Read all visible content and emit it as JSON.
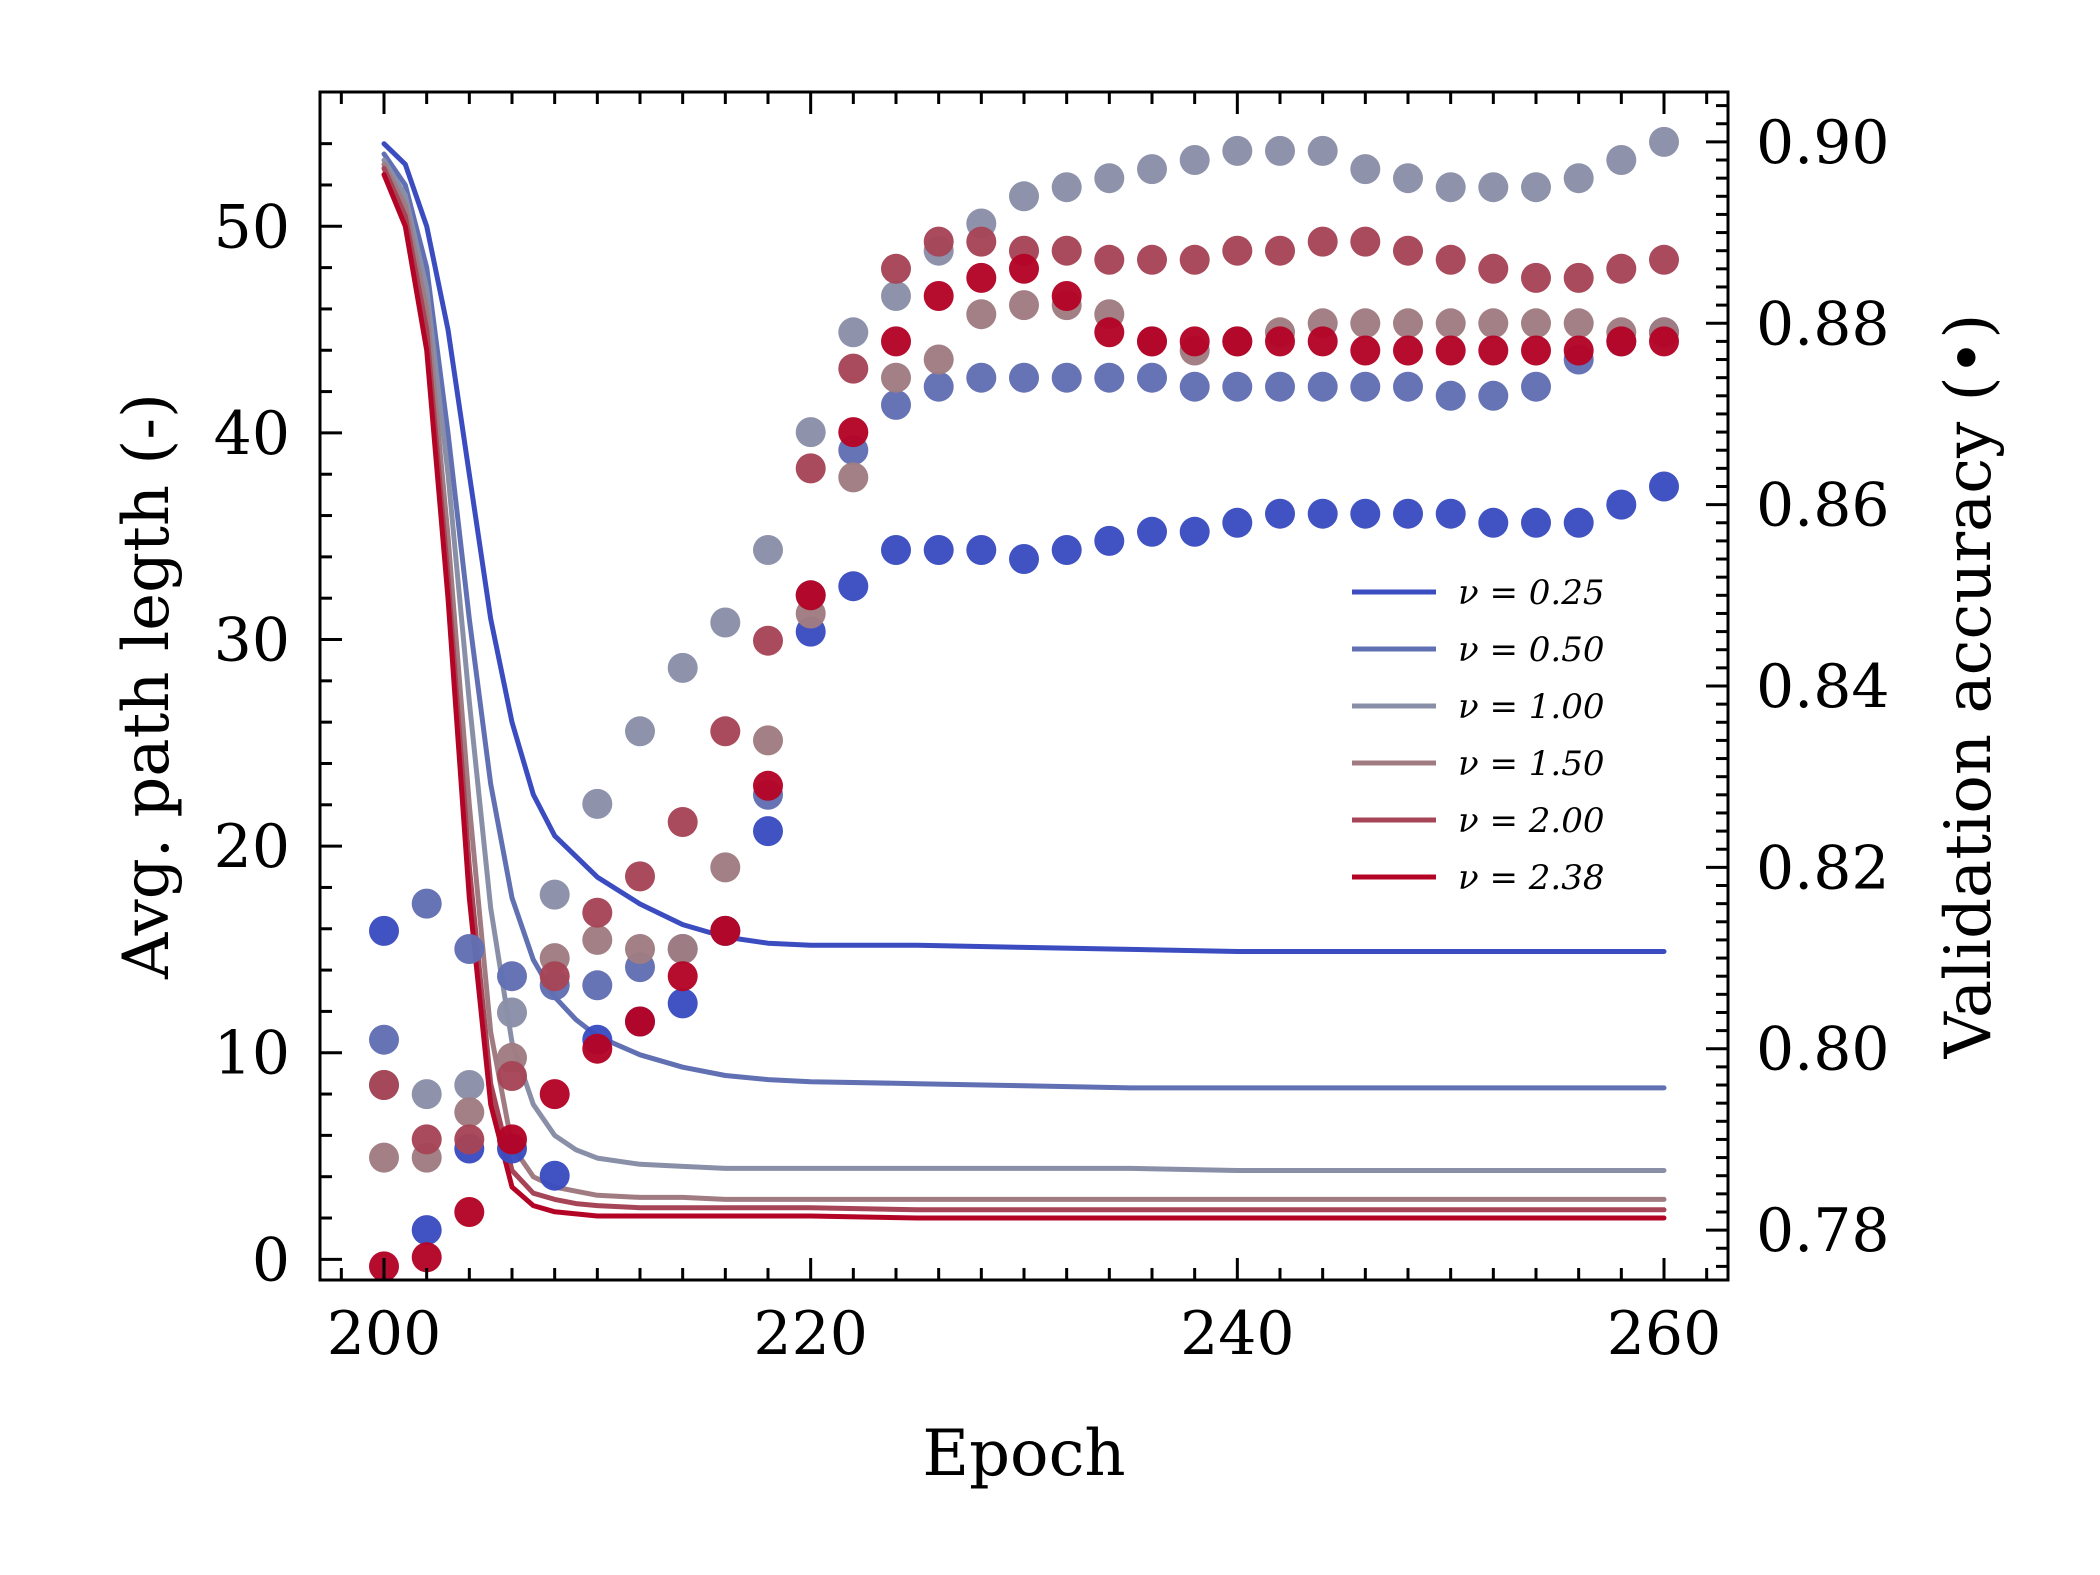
{
  "chart_data": {
    "type": "line+scatter",
    "xlabel": "Epoch",
    "ylabel_left": "Avg. path legth (-)",
    "ylabel_right": "Validation accuracy (•)",
    "xlim": [
      197,
      263
    ],
    "ylim_left": [
      -1,
      56.5
    ],
    "ylim_right": [
      0.7745,
      0.9055
    ],
    "x_ticks": [
      "200",
      "220",
      "240",
      "260"
    ],
    "y_left_ticks": [
      "0",
      "10",
      "20",
      "30",
      "40",
      "50"
    ],
    "y_right_ticks": [
      "0.78",
      "0.80",
      "0.82",
      "0.84",
      "0.86",
      "0.88",
      "0.90"
    ],
    "legend": {
      "position": "center-right"
    },
    "epochs": [
      200,
      202,
      204,
      206,
      208,
      210,
      212,
      214,
      216,
      218,
      220,
      222,
      224,
      226,
      228,
      230,
      232,
      234,
      236,
      238,
      240,
      242,
      244,
      246,
      248,
      250,
      252,
      254,
      256,
      258,
      260
    ],
    "series": [
      {
        "name": "ν = 0.25",
        "color": "#3b4cc0",
        "path_length": {
          "x": [
            200,
            201,
            202,
            203,
            204,
            205,
            206,
            207,
            208,
            210,
            212,
            214,
            216,
            218,
            220,
            222,
            225,
            230,
            235,
            240,
            245,
            250,
            255,
            260
          ],
          "y": [
            54,
            53,
            50,
            45,
            38,
            31,
            26,
            22.5,
            20.5,
            18.5,
            17.2,
            16.2,
            15.6,
            15.3,
            15.2,
            15.2,
            15.2,
            15.1,
            15.0,
            14.9,
            14.9,
            14.9,
            14.9,
            14.9
          ]
        },
        "accuracy": [
          0.813,
          0.78,
          0.789,
          0.789,
          0.786,
          0.801,
          0.803,
          0.805,
          0.813,
          0.824,
          0.846,
          0.851,
          0.855,
          0.855,
          0.855,
          0.854,
          0.855,
          0.856,
          0.857,
          0.857,
          0.858,
          0.859,
          0.859,
          0.859,
          0.859,
          0.859,
          0.858,
          0.858,
          0.858,
          0.86,
          0.862
        ]
      },
      {
        "name": "ν = 0.50",
        "color": "#6170b3",
        "path_length": {
          "x": [
            200,
            201,
            202,
            203,
            204,
            205,
            206,
            207,
            208,
            209,
            210,
            212,
            214,
            216,
            218,
            220,
            225,
            230,
            235,
            240,
            245,
            250,
            255,
            260
          ],
          "y": [
            53.5,
            52,
            48,
            40,
            31,
            23,
            17.5,
            14.5,
            12.7,
            11.6,
            10.8,
            9.9,
            9.3,
            8.9,
            8.7,
            8.6,
            8.5,
            8.4,
            8.3,
            8.3,
            8.3,
            8.3,
            8.3,
            8.3
          ]
        },
        "accuracy": [
          0.801,
          0.816,
          0.811,
          0.808,
          0.807,
          0.807,
          0.809,
          0.811,
          0.813,
          0.828,
          0.85,
          0.866,
          0.871,
          0.873,
          0.874,
          0.874,
          0.874,
          0.874,
          0.874,
          0.873,
          0.873,
          0.873,
          0.873,
          0.873,
          0.873,
          0.872,
          0.872,
          0.873,
          0.876,
          0.878,
          0.879
        ]
      },
      {
        "name": "ν = 1.00",
        "color": "#8a8fa8",
        "path_length": {
          "x": [
            200,
            201,
            202,
            203,
            204,
            205,
            206,
            207,
            208,
            209,
            210,
            212,
            214,
            216,
            218,
            220,
            225,
            230,
            235,
            240,
            245,
            250,
            255,
            260
          ],
          "y": [
            53.2,
            51.5,
            47,
            38,
            27,
            17,
            10.5,
            7.5,
            6.0,
            5.3,
            4.9,
            4.6,
            4.5,
            4.4,
            4.4,
            4.4,
            4.4,
            4.4,
            4.4,
            4.3,
            4.3,
            4.3,
            4.3,
            4.3
          ]
        },
        "accuracy": [
          0.796,
          0.795,
          0.796,
          0.804,
          0.817,
          0.827,
          0.835,
          0.842,
          0.847,
          0.855,
          0.868,
          0.879,
          0.883,
          0.888,
          0.891,
          0.894,
          0.895,
          0.896,
          0.897,
          0.898,
          0.899,
          0.899,
          0.899,
          0.897,
          0.896,
          0.895,
          0.895,
          0.895,
          0.896,
          0.898,
          0.9
        ]
      },
      {
        "name": "ν = 1.50",
        "color": "#a07c82",
        "path_length": {
          "x": [
            200,
            201,
            202,
            203,
            204,
            205,
            206,
            207,
            208,
            209,
            210,
            212,
            214,
            216,
            218,
            220,
            225,
            230,
            235,
            240,
            245,
            250,
            255,
            260
          ],
          "y": [
            53,
            51,
            46,
            35,
            22,
            11,
            5.5,
            4.0,
            3.5,
            3.3,
            3.1,
            3.0,
            3.0,
            2.9,
            2.9,
            2.9,
            2.9,
            2.9,
            2.9,
            2.9,
            2.9,
            2.9,
            2.9,
            2.9
          ]
        },
        "accuracy": [
          0.788,
          0.788,
          0.793,
          0.799,
          0.81,
          0.812,
          0.811,
          0.811,
          0.82,
          0.834,
          0.848,
          0.863,
          0.874,
          0.876,
          0.881,
          0.882,
          0.882,
          0.881,
          0.878,
          0.877,
          0.878,
          0.879,
          0.88,
          0.88,
          0.88,
          0.88,
          0.88,
          0.88,
          0.88,
          0.879,
          0.879
        ]
      },
      {
        "name": "ν = 2.00",
        "color": "#a64557",
        "path_length": {
          "x": [
            200,
            201,
            202,
            203,
            204,
            205,
            206,
            207,
            208,
            209,
            210,
            212,
            214,
            216,
            218,
            220,
            225,
            230,
            235,
            240,
            245,
            250,
            255,
            260
          ],
          "y": [
            52.8,
            50.5,
            45,
            33,
            19,
            8.5,
            4.3,
            3.2,
            2.9,
            2.7,
            2.6,
            2.5,
            2.5,
            2.5,
            2.5,
            2.5,
            2.4,
            2.4,
            2.4,
            2.4,
            2.4,
            2.4,
            2.4,
            2.4
          ]
        },
        "accuracy": [
          0.796,
          0.79,
          0.79,
          0.797,
          0.808,
          0.815,
          0.819,
          0.825,
          0.835,
          0.845,
          0.864,
          0.875,
          0.886,
          0.889,
          0.889,
          0.888,
          0.888,
          0.887,
          0.887,
          0.887,
          0.888,
          0.888,
          0.889,
          0.889,
          0.888,
          0.887,
          0.886,
          0.885,
          0.885,
          0.886,
          0.887
        ]
      },
      {
        "name": "ν = 2.38",
        "color": "#b40426",
        "path_length": {
          "x": [
            200,
            201,
            202,
            203,
            204,
            205,
            206,
            207,
            208,
            209,
            210,
            212,
            214,
            216,
            218,
            220,
            225,
            230,
            235,
            240,
            245,
            250,
            255,
            260
          ],
          "y": [
            52.5,
            50,
            44,
            32,
            17.5,
            7.5,
            3.5,
            2.6,
            2.3,
            2.2,
            2.1,
            2.1,
            2.1,
            2.1,
            2.1,
            2.1,
            2.0,
            2.0,
            2.0,
            2.0,
            2.0,
            2.0,
            2.0,
            2.0
          ]
        },
        "accuracy": [
          0.776,
          0.777,
          0.782,
          0.79,
          0.795,
          0.8,
          0.803,
          0.808,
          0.813,
          0.829,
          0.85,
          0.868,
          0.878,
          0.883,
          0.885,
          0.886,
          0.883,
          0.879,
          0.878,
          0.878,
          0.878,
          0.878,
          0.878,
          0.877,
          0.877,
          0.877,
          0.877,
          0.877,
          0.877,
          0.878,
          0.878
        ]
      }
    ]
  }
}
